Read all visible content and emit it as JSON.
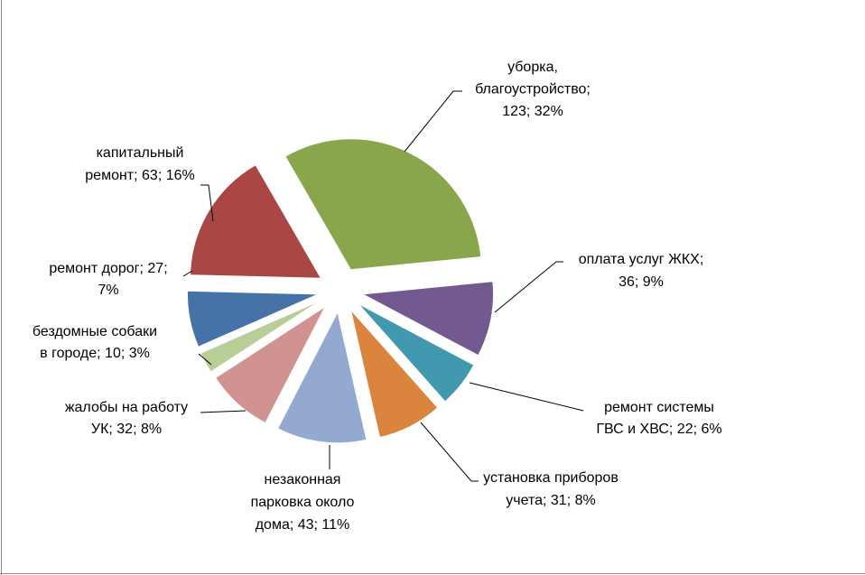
{
  "chart_data": {
    "type": "pie",
    "values": [
      123,
      36,
      22,
      31,
      43,
      32,
      10,
      27,
      63
    ],
    "value_labels": [
      [
        "уборка,",
        "благоустройство;",
        "123; 32%"
      ],
      [
        "оплата услуг ЖКХ;",
        "36; 9%"
      ],
      [
        "ремонт системы",
        "ГВС и ХВС;  22; 6%"
      ],
      [
        "установка приборов",
        "учета; 31; 8%"
      ],
      [
        "незаконная",
        "парковка около",
        "дома; 43; 11%"
      ],
      [
        "жалобы на работу",
        "УК; 32; 8%"
      ],
      [
        "бездомные собаки",
        "в городе; 10; 3%"
      ],
      [
        "ремонт дорог; 27;",
        "7%"
      ],
      [
        "капитальный",
        "ремонт; 63; 16%"
      ]
    ],
    "colors": [
      "#8aa64c",
      "#725990",
      "#4198af",
      "#db843d",
      "#93a9cf",
      "#d19392",
      "#b9cd96",
      "#4572a7",
      "#aa4643"
    ]
  }
}
